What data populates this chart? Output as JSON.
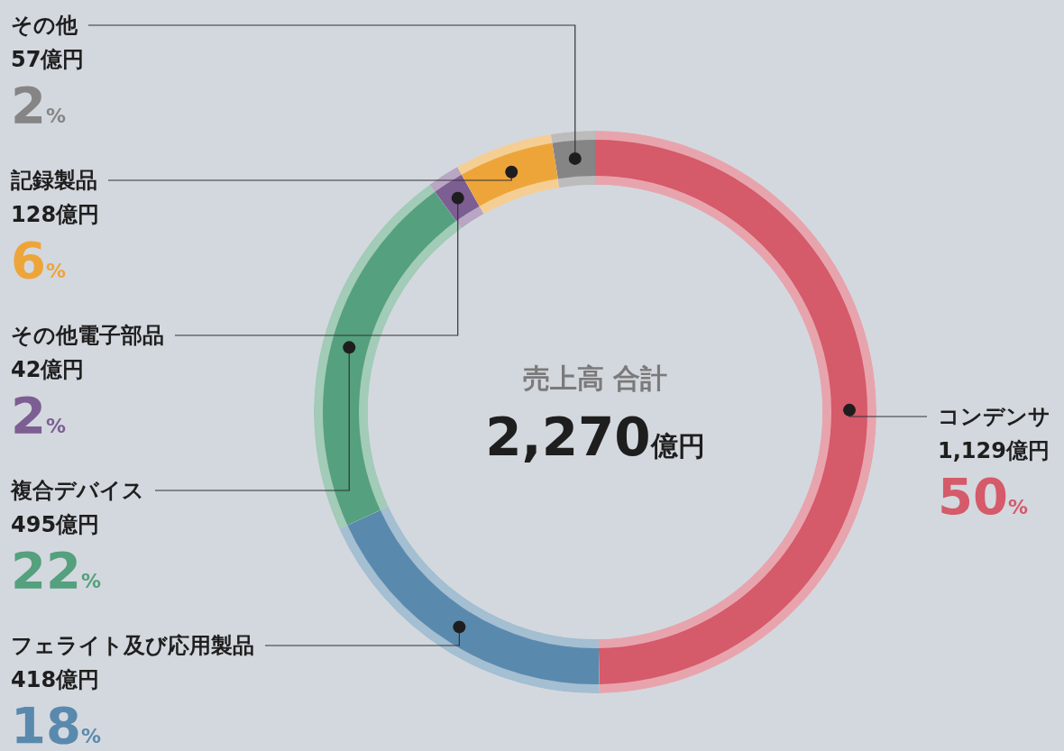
{
  "chart_data": {
    "type": "donut",
    "title": "売上高 合計",
    "subtitle": "2,270億円",
    "categories": [
      "コンデンサ",
      "フェライト及び応用製品",
      "複合デバイス",
      "その他電子部品",
      "記録製品",
      "その他"
    ],
    "values": [
      1129,
      418,
      495,
      42,
      128,
      57
    ],
    "colors": [
      "#d55a6a",
      "#5a89ae",
      "#55a07e",
      "#7d5e93",
      "#eda53a",
      "#858585"
    ],
    "value_labels": [
      "1,129億円",
      "418億円",
      "495億円",
      "42億円",
      "128億円",
      "57億円"
    ],
    "annotations": [
      {
        "text": "50%",
        "x": "コンデンサ"
      },
      {
        "text": "18%",
        "x": "フェライト及び応用製品"
      },
      {
        "text": "22%",
        "x": "複合デバイス"
      },
      {
        "text": "2%",
        "x": "その他電子部品"
      },
      {
        "text": "6%",
        "x": "記録製品"
      },
      {
        "text": "2%",
        "x": "その他"
      }
    ]
  }
}
